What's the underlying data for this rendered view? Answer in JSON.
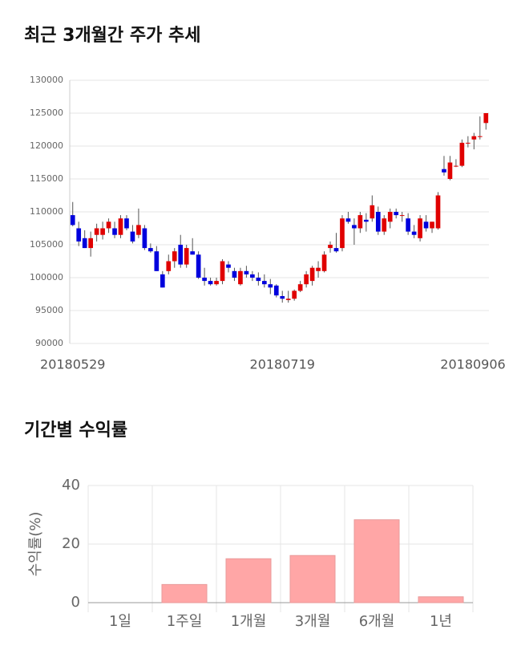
{
  "chart_data": [
    {
      "type": "candlestick",
      "title": "최근 3개월간 주가 추세",
      "categories": [
        "20180529",
        null,
        null,
        null,
        null,
        null,
        null,
        null,
        null,
        null,
        null,
        null,
        null,
        null,
        null,
        null,
        null,
        null,
        null,
        null,
        null,
        null,
        null,
        null,
        null,
        null,
        null,
        null,
        null,
        null,
        null,
        null,
        null,
        null,
        null,
        "20180719",
        null,
        null,
        null,
        null,
        null,
        null,
        null,
        null,
        null,
        null,
        null,
        null,
        null,
        null,
        null,
        null,
        null,
        null,
        null,
        null,
        null,
        null,
        null,
        null,
        null,
        null,
        null,
        null,
        null,
        null,
        null,
        null,
        null,
        "20180906"
      ],
      "open": [
        109500,
        107500,
        106000,
        104500,
        106500,
        106500,
        107500,
        107500,
        106500,
        109000,
        107000,
        106500,
        107500,
        104500,
        104000,
        100500,
        101000,
        102500,
        105000,
        102000,
        104000,
        103500,
        100000,
        99500,
        99000,
        99500,
        102000,
        101000,
        99000,
        101000,
        100500,
        100000,
        99500,
        99000,
        98800,
        97200,
        96600,
        96800,
        98000,
        99000,
        99500,
        101000,
        101000,
        104500,
        104500,
        104500,
        109000,
        108000,
        107500,
        108800,
        109000,
        110000,
        107000,
        108500,
        110000,
        109500,
        109000,
        107000,
        106000,
        108500,
        107500,
        107500,
        116500,
        115000,
        117000,
        117000,
        120500,
        121000,
        121500,
        123500
      ],
      "high": [
        111500,
        108500,
        107200,
        107000,
        108200,
        108500,
        109000,
        108500,
        109500,
        109500,
        108000,
        110500,
        108000,
        105200,
        104800,
        101000,
        103500,
        104500,
        106500,
        105000,
        106000,
        104000,
        101500,
        100000,
        100000,
        102800,
        102500,
        101500,
        101500,
        101800,
        101000,
        100800,
        100500,
        99800,
        99000,
        98000,
        98000,
        98200,
        99500,
        101000,
        101800,
        102500,
        104000,
        105500,
        106800,
        109500,
        110000,
        109000,
        110000,
        109800,
        112500,
        110800,
        109500,
        110500,
        110500,
        110000,
        109800,
        108000,
        109500,
        109500,
        108500,
        113000,
        118500,
        118500,
        118000,
        121000,
        121500,
        122000,
        124500,
        125000
      ],
      "low": [
        107800,
        104800,
        104500,
        103200,
        105500,
        105800,
        106800,
        106000,
        106000,
        107200,
        105200,
        106000,
        104200,
        103800,
        101000,
        98500,
        100500,
        101500,
        101500,
        101500,
        103500,
        99800,
        98800,
        98800,
        98800,
        99000,
        100800,
        99500,
        98800,
        100000,
        99500,
        98800,
        98500,
        97500,
        97000,
        96200,
        96200,
        96500,
        97800,
        98500,
        98800,
        100000,
        100800,
        103800,
        103800,
        104000,
        108200,
        105000,
        106800,
        107000,
        108500,
        106500,
        106500,
        107500,
        109000,
        108500,
        106500,
        106000,
        105500,
        107000,
        106800,
        107300,
        115500,
        114800,
        116800,
        116800,
        119800,
        119500,
        121000,
        122500
      ],
      "close": [
        108000,
        105500,
        104500,
        106000,
        107500,
        107500,
        108500,
        106500,
        109000,
        107500,
        105500,
        108000,
        104500,
        104000,
        101000,
        98500,
        102500,
        104000,
        102000,
        104500,
        103500,
        100000,
        99500,
        99000,
        99500,
        102500,
        101500,
        100000,
        101000,
        100500,
        100000,
        99500,
        99000,
        98500,
        97300,
        96800,
        96800,
        98000,
        99000,
        100500,
        101500,
        101500,
        103500,
        105000,
        104000,
        109000,
        108500,
        107500,
        109500,
        108500,
        111000,
        107000,
        109000,
        110000,
        109500,
        109500,
        107000,
        106500,
        109000,
        107500,
        108500,
        112500,
        116000,
        117500,
        117000,
        120500,
        120500,
        121500,
        121500,
        125000
      ],
      "up_color": "#e00000",
      "down_color": "#0000dd",
      "ylim": [
        90000,
        130000
      ],
      "yticks": [
        90000,
        95000,
        100000,
        105000,
        110000,
        115000,
        120000,
        125000,
        130000
      ],
      "grid": true
    },
    {
      "type": "bar",
      "title": "기간별 수익률",
      "y_label": "수익률(%)",
      "categories": [
        "1일",
        "1주일",
        "1개월",
        "3개월",
        "6개월",
        "1년"
      ],
      "values": [
        0,
        6.2,
        15.0,
        16.1,
        28.3,
        2.0
      ],
      "color": "#ffa6a6",
      "ylim": [
        0,
        40
      ],
      "yticks": [
        0,
        20,
        40
      ],
      "grid": true
    }
  ]
}
